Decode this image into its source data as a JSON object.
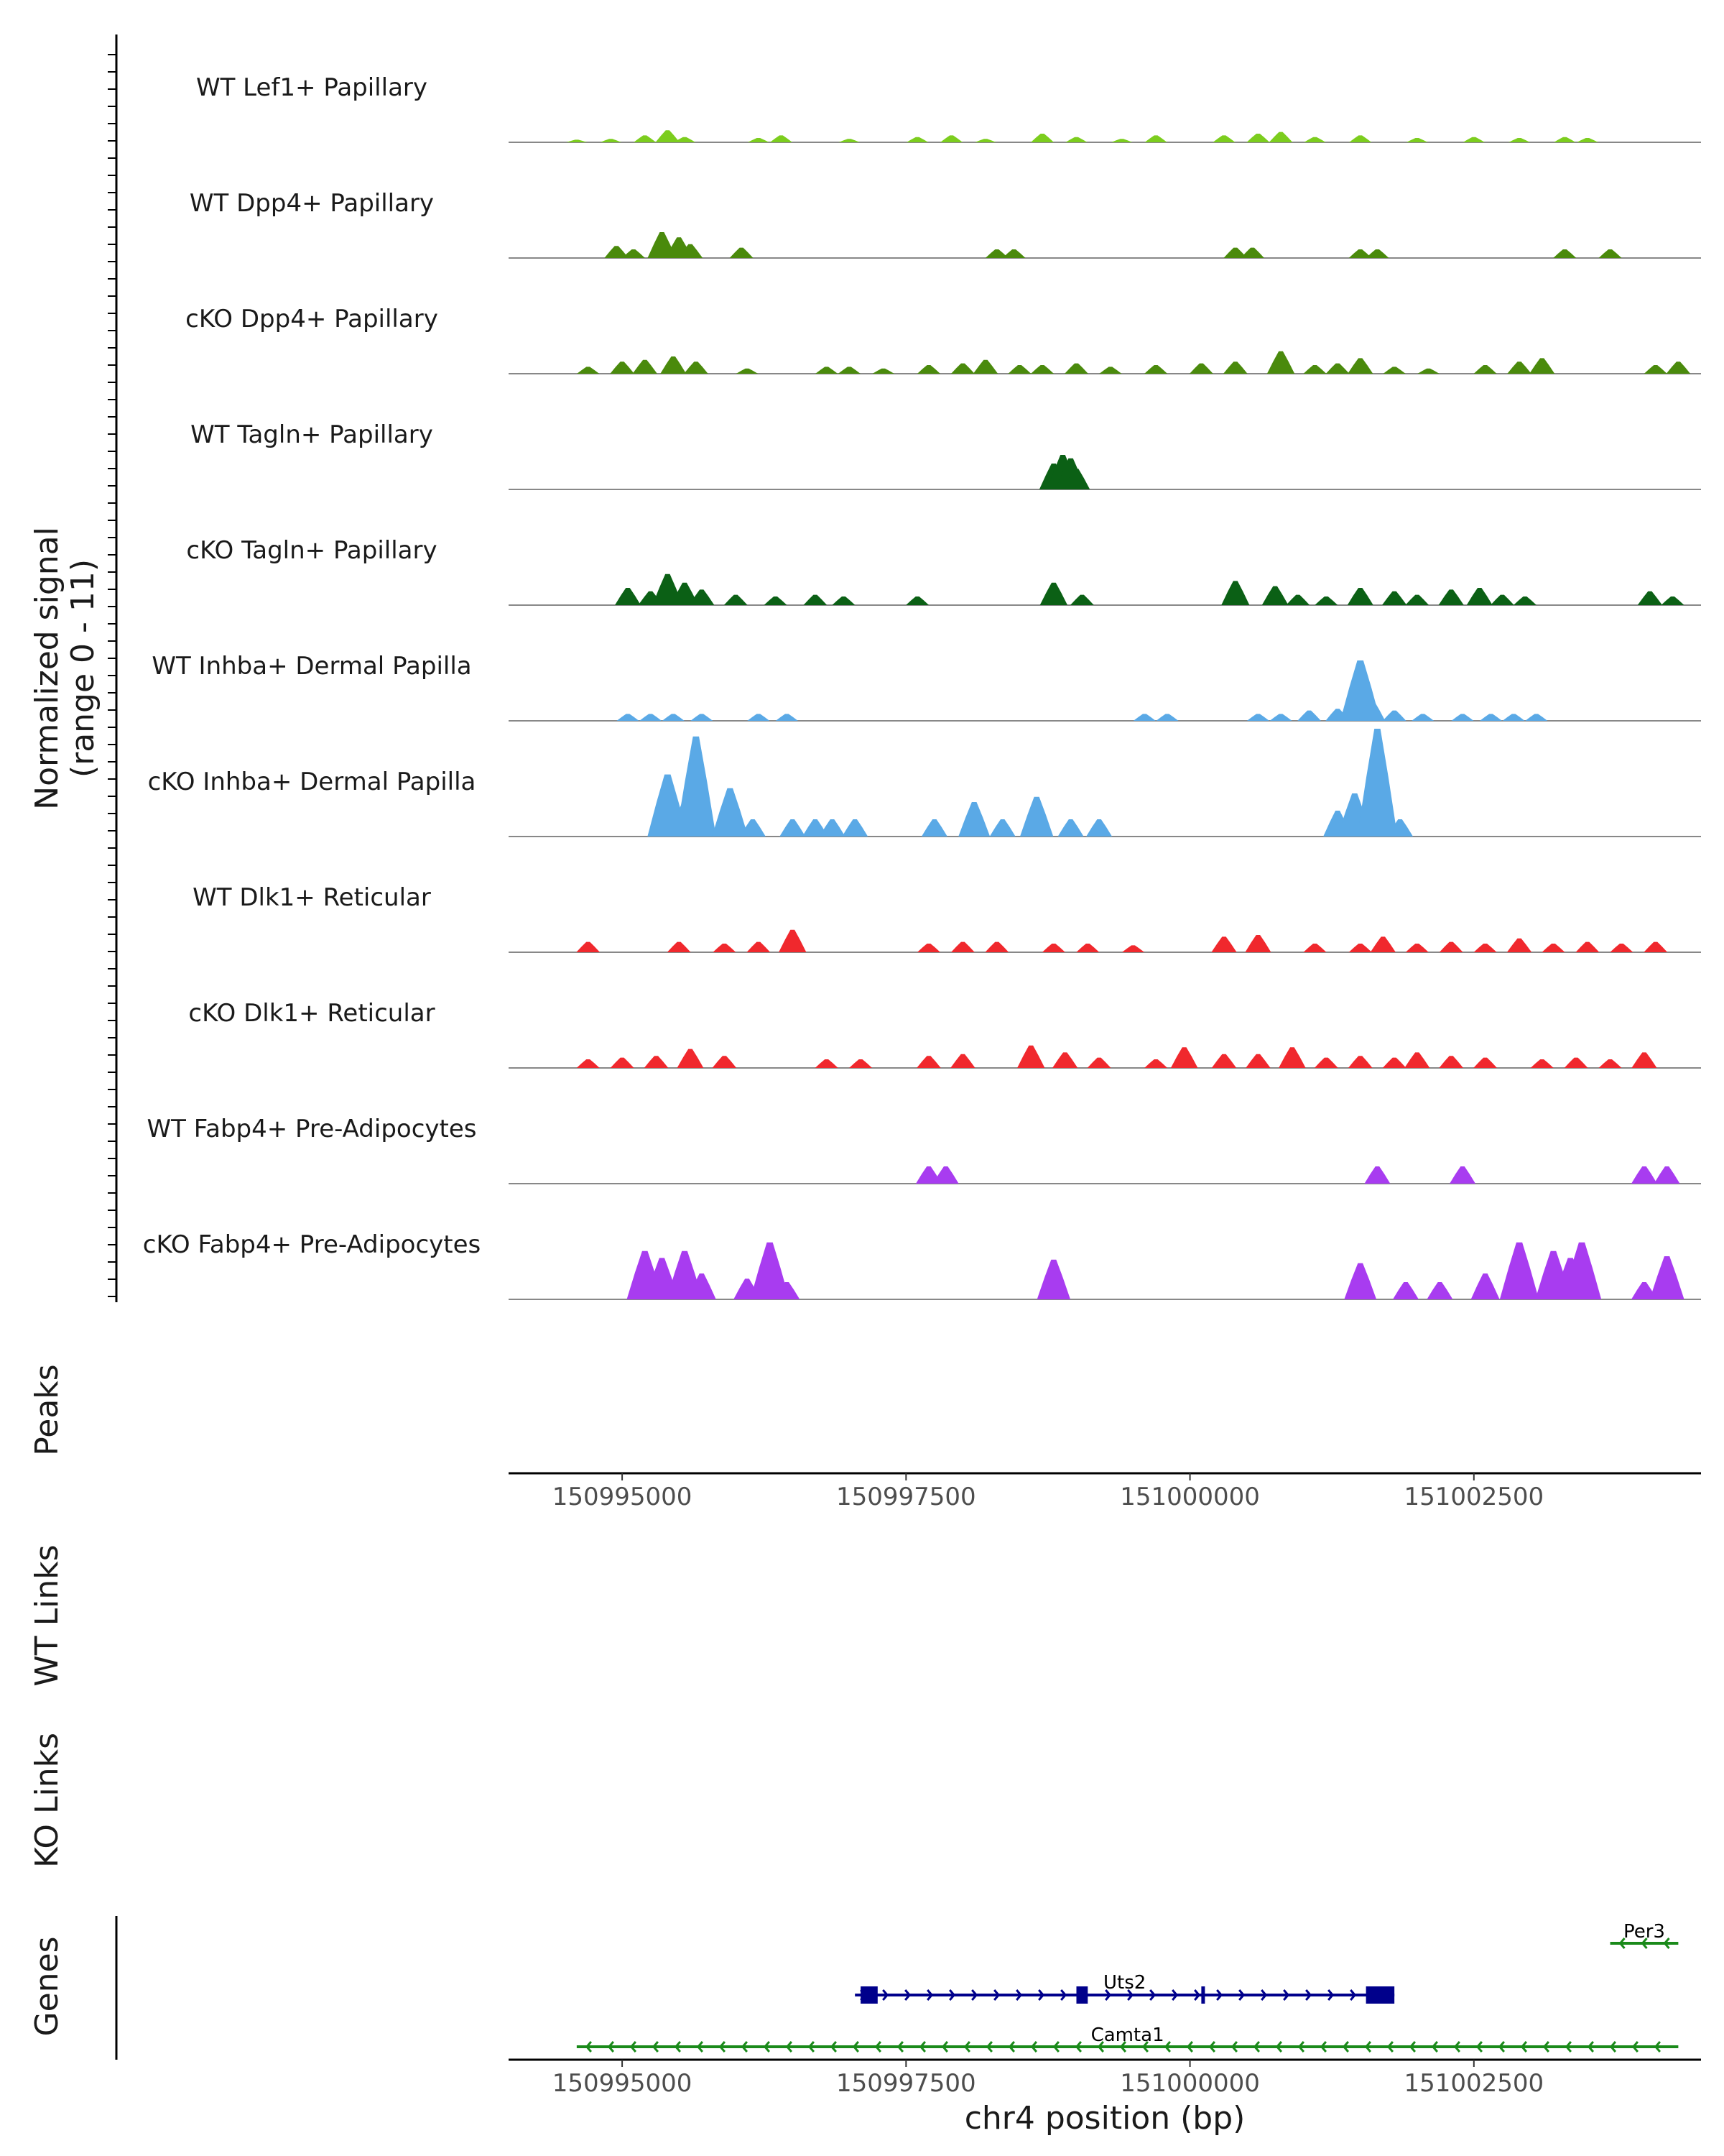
{
  "chart_data": {
    "type": "area",
    "title": "",
    "signal_ylabel": "Normalized signal",
    "signal_range_label": "(range 0 - 11)",
    "y_range": [
      0,
      11
    ],
    "x_range": [
      150994000,
      151004500
    ],
    "xlabel": "chr4 position (bp)",
    "x_ticks": [
      150995000,
      150997500,
      151000000,
      151002500
    ],
    "x_tick_labels": [
      "150995000",
      "150997500",
      "151000000",
      "151002500"
    ],
    "peaks_label": "Peaks",
    "wt_links_label": "WT Links",
    "ko_links_label": "KO Links",
    "genes_label": "Genes",
    "tracks": [
      {
        "name": "WT Lef1+ Papillary",
        "color": "#7CCD1E",
        "peaks": [
          [
            150994600,
            0.15
          ],
          [
            150994900,
            0.2
          ],
          [
            150995200,
            0.4
          ],
          [
            150995400,
            0.7
          ],
          [
            150995550,
            0.3
          ],
          [
            150996200,
            0.25
          ],
          [
            150996400,
            0.4
          ],
          [
            150997000,
            0.2
          ],
          [
            150997600,
            0.3
          ],
          [
            150997900,
            0.4
          ],
          [
            150998200,
            0.2
          ],
          [
            150998700,
            0.5
          ],
          [
            150999000,
            0.3
          ],
          [
            150999400,
            0.2
          ],
          [
            150999700,
            0.4
          ],
          [
            151000300,
            0.4
          ],
          [
            151000600,
            0.5
          ],
          [
            151000800,
            0.6
          ],
          [
            151001100,
            0.3
          ],
          [
            151001500,
            0.4
          ],
          [
            151002000,
            0.25
          ],
          [
            151002500,
            0.3
          ],
          [
            151002900,
            0.25
          ],
          [
            151003300,
            0.3
          ],
          [
            151003500,
            0.25
          ]
        ]
      },
      {
        "name": "WT Dpp4+ Papillary",
        "color": "#4A8A0C",
        "peaks": [
          [
            150994950,
            0.7
          ],
          [
            150995100,
            0.5
          ],
          [
            150995350,
            1.5
          ],
          [
            150995500,
            1.2
          ],
          [
            150995600,
            0.8
          ],
          [
            150996050,
            0.6
          ],
          [
            150998300,
            0.5
          ],
          [
            150998450,
            0.5
          ],
          [
            151000400,
            0.6
          ],
          [
            151000550,
            0.6
          ],
          [
            151001500,
            0.5
          ],
          [
            151001650,
            0.5
          ],
          [
            151003300,
            0.5
          ],
          [
            151003700,
            0.5
          ]
        ]
      },
      {
        "name": "cKO Dpp4+ Papillary",
        "color": "#4A8A0C",
        "peaks": [
          [
            150994700,
            0.4
          ],
          [
            150995000,
            0.7
          ],
          [
            150995200,
            0.8
          ],
          [
            150995450,
            1.0
          ],
          [
            150995650,
            0.7
          ],
          [
            150996100,
            0.3
          ],
          [
            150996800,
            0.4
          ],
          [
            150997000,
            0.4
          ],
          [
            150997300,
            0.3
          ],
          [
            150997700,
            0.5
          ],
          [
            150998000,
            0.6
          ],
          [
            150998200,
            0.8
          ],
          [
            150998500,
            0.5
          ],
          [
            150998700,
            0.5
          ],
          [
            150999000,
            0.6
          ],
          [
            150999300,
            0.4
          ],
          [
            150999700,
            0.5
          ],
          [
            151000100,
            0.6
          ],
          [
            151000400,
            0.7
          ],
          [
            151000800,
            1.3
          ],
          [
            151001100,
            0.5
          ],
          [
            151001300,
            0.6
          ],
          [
            151001500,
            0.9
          ],
          [
            151001800,
            0.4
          ],
          [
            151002100,
            0.3
          ],
          [
            151002600,
            0.5
          ],
          [
            151002900,
            0.7
          ],
          [
            151003100,
            0.9
          ],
          [
            151004100,
            0.5
          ],
          [
            151004300,
            0.7
          ]
        ]
      },
      {
        "name": "WT Tagln+ Papillary",
        "color": "#0B6015",
        "peaks": [
          [
            150998800,
            1.5
          ],
          [
            150998880,
            2.0
          ],
          [
            150998950,
            1.8
          ],
          [
            150999000,
            1.2
          ]
        ]
      },
      {
        "name": "cKO Tagln+ Papillary",
        "color": "#0B6015",
        "peaks": [
          [
            150995050,
            1.0
          ],
          [
            150995250,
            0.8
          ],
          [
            150995400,
            1.8
          ],
          [
            150995550,
            1.3
          ],
          [
            150995700,
            0.9
          ],
          [
            150996000,
            0.6
          ],
          [
            150996350,
            0.5
          ],
          [
            150996700,
            0.6
          ],
          [
            150996950,
            0.5
          ],
          [
            150997600,
            0.5
          ],
          [
            150998800,
            1.3
          ],
          [
            150999050,
            0.6
          ],
          [
            151000400,
            1.4
          ],
          [
            151000750,
            1.1
          ],
          [
            151000950,
            0.6
          ],
          [
            151001200,
            0.5
          ],
          [
            151001500,
            1.0
          ],
          [
            151001800,
            0.8
          ],
          [
            151002000,
            0.6
          ],
          [
            151002300,
            0.9
          ],
          [
            151002550,
            1.0
          ],
          [
            151002750,
            0.6
          ],
          [
            151002950,
            0.5
          ],
          [
            151004050,
            0.8
          ],
          [
            151004250,
            0.5
          ]
        ]
      },
      {
        "name": "WT Inhba+ Dermal Papilla",
        "color": "#5AA9E6",
        "peaks": [
          [
            150995050,
            0.4
          ],
          [
            150995250,
            0.4
          ],
          [
            150995450,
            0.4
          ],
          [
            150995700,
            0.4
          ],
          [
            150996200,
            0.4
          ],
          [
            150996450,
            0.4
          ],
          [
            150999600,
            0.4
          ],
          [
            150999800,
            0.4
          ],
          [
            151000600,
            0.4
          ],
          [
            151000800,
            0.4
          ],
          [
            151001050,
            0.6
          ],
          [
            151001300,
            0.7
          ],
          [
            151001500,
            3.5
          ],
          [
            151001600,
            1.2
          ],
          [
            151001800,
            0.6
          ],
          [
            151002050,
            0.4
          ],
          [
            151002400,
            0.4
          ],
          [
            151002650,
            0.4
          ],
          [
            151002850,
            0.4
          ],
          [
            151003050,
            0.4
          ]
        ]
      },
      {
        "name": "cKO Inhba+ Dermal Papilla",
        "color": "#5AA9E6",
        "peaks": [
          [
            150995400,
            3.6
          ],
          [
            150995550,
            2.0
          ],
          [
            150995650,
            5.8
          ],
          [
            150995950,
            2.8
          ],
          [
            150996150,
            1.0
          ],
          [
            150996500,
            1.0
          ],
          [
            150996700,
            1.0
          ],
          [
            150996850,
            1.0
          ],
          [
            150997050,
            1.0
          ],
          [
            150997750,
            1.0
          ],
          [
            150998100,
            2.0
          ],
          [
            150998350,
            1.0
          ],
          [
            150998650,
            2.3
          ],
          [
            150998950,
            1.0
          ],
          [
            150999200,
            1.0
          ],
          [
            151001300,
            1.5
          ],
          [
            151001450,
            2.5
          ],
          [
            151001650,
            7.5
          ],
          [
            151001850,
            1.0
          ]
        ]
      },
      {
        "name": "WT Dlk1+ Reticular",
        "color": "#F0282D",
        "peaks": [
          [
            150994700,
            0.6
          ],
          [
            150995500,
            0.6
          ],
          [
            150995900,
            0.5
          ],
          [
            150996200,
            0.6
          ],
          [
            150996500,
            1.3
          ],
          [
            150997700,
            0.5
          ],
          [
            150998000,
            0.6
          ],
          [
            150998300,
            0.6
          ],
          [
            150998800,
            0.5
          ],
          [
            150999100,
            0.5
          ],
          [
            150999500,
            0.4
          ],
          [
            151000300,
            0.9
          ],
          [
            151000600,
            1.0
          ],
          [
            151001100,
            0.5
          ],
          [
            151001500,
            0.5
          ],
          [
            151001700,
            0.9
          ],
          [
            151002000,
            0.5
          ],
          [
            151002300,
            0.6
          ],
          [
            151002600,
            0.5
          ],
          [
            151002900,
            0.8
          ],
          [
            151003200,
            0.5
          ],
          [
            151003500,
            0.6
          ],
          [
            151003800,
            0.5
          ],
          [
            151004100,
            0.6
          ]
        ]
      },
      {
        "name": "cKO Dlk1+ Reticular",
        "color": "#F0282D",
        "peaks": [
          [
            150994700,
            0.5
          ],
          [
            150995000,
            0.6
          ],
          [
            150995300,
            0.7
          ],
          [
            150995600,
            1.1
          ],
          [
            150995900,
            0.7
          ],
          [
            150996800,
            0.5
          ],
          [
            150997100,
            0.5
          ],
          [
            150997700,
            0.7
          ],
          [
            150998000,
            0.8
          ],
          [
            150998600,
            1.3
          ],
          [
            150998900,
            0.9
          ],
          [
            150999200,
            0.6
          ],
          [
            150999700,
            0.5
          ],
          [
            150999950,
            1.2
          ],
          [
            151000300,
            0.8
          ],
          [
            151000600,
            0.8
          ],
          [
            151000900,
            1.2
          ],
          [
            151001200,
            0.6
          ],
          [
            151001500,
            0.7
          ],
          [
            151001800,
            0.6
          ],
          [
            151002000,
            0.9
          ],
          [
            151002300,
            0.7
          ],
          [
            151002600,
            0.6
          ],
          [
            151003100,
            0.5
          ],
          [
            151003400,
            0.6
          ],
          [
            151003700,
            0.5
          ],
          [
            151004000,
            0.9
          ]
        ]
      },
      {
        "name": "WT Fabp4+ Pre-Adipocytes",
        "color": "#A83CF0",
        "peaks": [
          [
            150997700,
            1.0
          ],
          [
            150997850,
            1.0
          ],
          [
            151001650,
            1.0
          ],
          [
            151002400,
            1.0
          ],
          [
            151004000,
            1.0
          ],
          [
            151004200,
            1.0
          ]
        ]
      },
      {
        "name": "cKO Fabp4+ Pre-Adipocytes",
        "color": "#A83CF0",
        "peaks": [
          [
            150995200,
            2.8
          ],
          [
            150995350,
            2.4
          ],
          [
            150995550,
            2.8
          ],
          [
            150995700,
            1.5
          ],
          [
            150996100,
            1.2
          ],
          [
            150996300,
            3.3
          ],
          [
            150996450,
            1.0
          ],
          [
            150998800,
            2.3
          ],
          [
            151001500,
            2.1
          ],
          [
            151001900,
            1.0
          ],
          [
            151002200,
            1.0
          ],
          [
            151002600,
            1.5
          ],
          [
            151002900,
            3.3
          ],
          [
            151003200,
            2.8
          ],
          [
            151003350,
            2.4
          ],
          [
            151003450,
            3.3
          ],
          [
            151004000,
            1.0
          ],
          [
            151004200,
            2.5
          ]
        ]
      }
    ],
    "genes": [
      {
        "name": "Per3",
        "start": 151003700,
        "end": 151004300,
        "strand": "-",
        "color": "#1A8A1A",
        "exons": []
      },
      {
        "name": "Uts2",
        "start": 150997050,
        "end": 151001800,
        "strand": "+",
        "color": "#00008B",
        "exons": [
          [
            150997100,
            150997250
          ],
          [
            150999000,
            150999100
          ],
          [
            151000100,
            151000130
          ],
          [
            151001550,
            151001800
          ]
        ]
      },
      {
        "name": "Camta1",
        "start": 150994600,
        "end": 151004300,
        "strand": "-",
        "color": "#1A8A1A",
        "exons": []
      }
    ]
  }
}
